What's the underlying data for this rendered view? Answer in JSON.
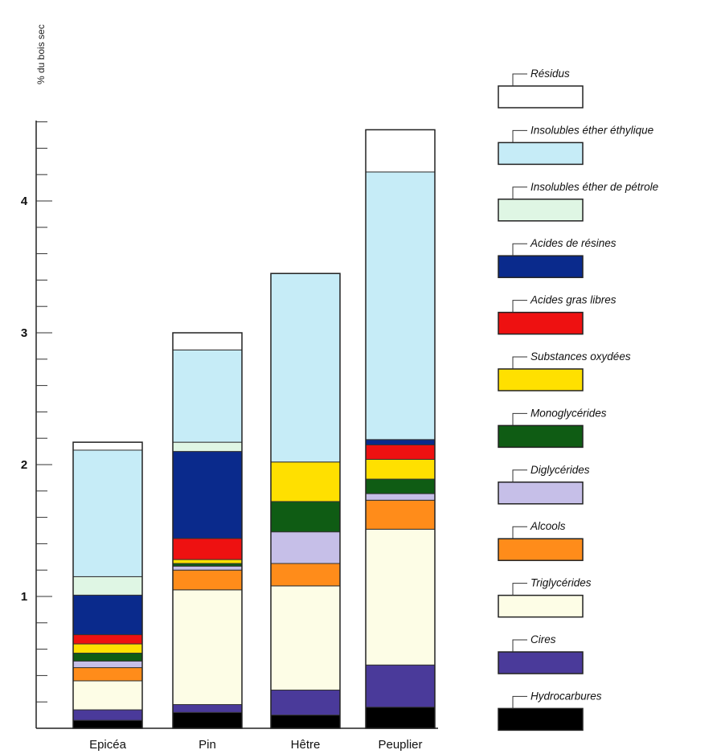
{
  "chart_data": {
    "type": "bar",
    "stacked": true,
    "ylabel": "% du bois sec",
    "yticks": [
      "1",
      "2",
      "3",
      "4"
    ],
    "ylim": [
      0,
      4.6
    ],
    "categories": [
      "Epicéa",
      "Pin",
      "Hêtre",
      "Peuplier"
    ],
    "series": [
      {
        "name": "Hydrocarbures",
        "color": "#000000",
        "values": [
          0.06,
          0.12,
          0.1,
          0.16
        ]
      },
      {
        "name": "Cires",
        "color": "#4a3a9a",
        "values": [
          0.08,
          0.06,
          0.19,
          0.32
        ]
      },
      {
        "name": "Triglycérides",
        "color": "#fdfde6",
        "values": [
          0.22,
          0.87,
          0.79,
          1.03
        ]
      },
      {
        "name": "Alcools",
        "color": "#ff8c1a",
        "values": [
          0.1,
          0.15,
          0.17,
          0.22
        ]
      },
      {
        "name": "Diglycérides",
        "color": "#c6bfe8",
        "values": [
          0.05,
          0.03,
          0.24,
          0.05
        ]
      },
      {
        "name": "Monoglycérides",
        "color": "#0f5c14",
        "values": [
          0.06,
          0.02,
          0.23,
          0.11
        ]
      },
      {
        "name": "Substances oxydées",
        "color": "#ffe000",
        "values": [
          0.07,
          0.03,
          0.3,
          0.15
        ]
      },
      {
        "name": "Acides gras libres",
        "color": "#ee1111",
        "values": [
          0.07,
          0.16,
          0.0,
          0.11
        ]
      },
      {
        "name": "Acides de résines",
        "color": "#0a2a8c",
        "values": [
          0.3,
          0.66,
          0.0,
          0.04
        ]
      },
      {
        "name": "Insolubles éther de pétrole",
        "color": "#dff6e4",
        "values": [
          0.14,
          0.07,
          0.0,
          0.0
        ]
      },
      {
        "name": "Insolubles éther éthylique",
        "color": "#c6ecf7",
        "values": [
          0.96,
          0.7,
          1.43,
          2.03
        ]
      },
      {
        "name": "Résidus",
        "color": "#ffffff",
        "values": [
          0.06,
          0.13,
          0.0,
          0.32
        ]
      }
    ],
    "legend": [
      "Résidus",
      "Insolubles éther éthylique",
      "Insolubles éther de pétrole",
      "Acides de résines",
      "Acides gras libres",
      "Substances oxydées",
      "Monoglycérides",
      "Diglycérides",
      "Alcools",
      "Triglycérides",
      "Cires",
      "Hydrocarbures"
    ],
    "legend_position": "right",
    "grid": false
  }
}
